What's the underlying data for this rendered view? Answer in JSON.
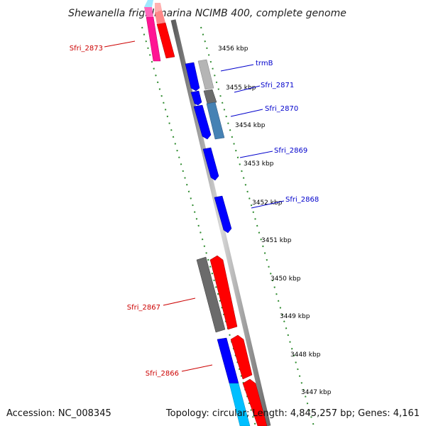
{
  "title": "Shewanella frigidimarina NCIMB 400, complete genome",
  "footer": {
    "accession": "Accession: NC_008345",
    "info": "Topology: circular; Length: 4,845,257 bp; Genes: 4,161"
  },
  "ticks": [
    "3456 kbp",
    "3455 kbp",
    "3454 kbp",
    "3453 kbp",
    "3452 kbp",
    "3451 kbp",
    "3450 kbp",
    "3449 kbp",
    "3448 kbp",
    "3447 kbp"
  ],
  "labels": {
    "sfri_2873": "Sfri_2873",
    "trmB": "trmB",
    "sfri_2871": "Sfri_2871",
    "sfri_2870": "Sfri_2870",
    "sfri_2869": "Sfri_2869",
    "sfri_2868": "Sfri_2868",
    "sfri_2867": "Sfri_2867",
    "sfri_2866": "Sfri_2866"
  },
  "colors": {
    "forward_cds": "#ff0000",
    "reverse_cds": "#0000ff",
    "gray_feature": "#6b6b6b",
    "light_gray_feature": "#b5b5b5",
    "steel_blue_feature": "#4682b4",
    "pink_feature": "#ff1493",
    "cyan_feature": "#00bfff",
    "tick_green": "#008000",
    "reverse_label": "#0000cc",
    "forward_label": "#cc0000"
  }
}
